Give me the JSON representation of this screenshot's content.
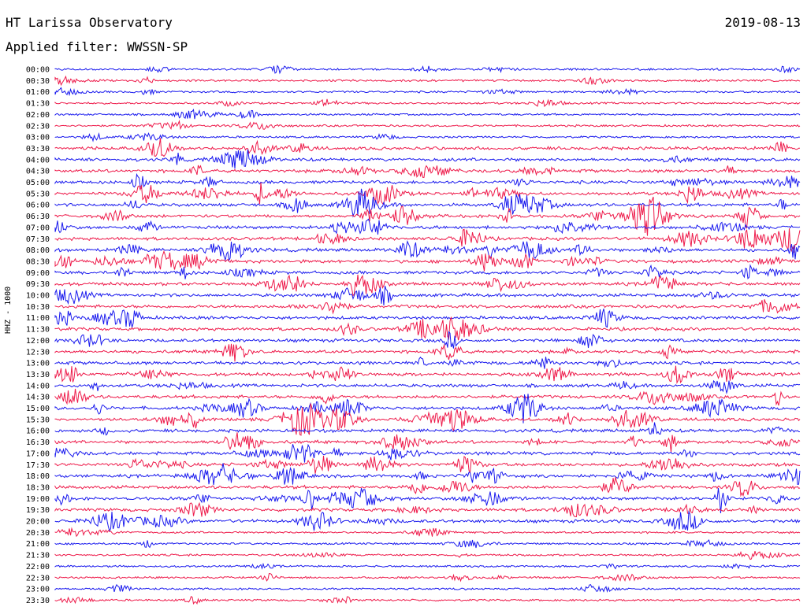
{
  "header": {
    "title": "HT Larissa Observatory",
    "date": "2019-08-13",
    "filter": "Applied filter: WWSSN-SP"
  },
  "chart_data": {
    "type": "line",
    "ylabel": "HHZ - 1000",
    "colors": {
      "even": "#1a1aee",
      "odd": "#ee1a4a"
    },
    "rows": [
      {
        "label": "00:00"
      },
      {
        "label": "00:30"
      },
      {
        "label": "01:00"
      },
      {
        "label": "01:30"
      },
      {
        "label": "02:00"
      },
      {
        "label": "02:30"
      },
      {
        "label": "03:00"
      },
      {
        "label": "03:30"
      },
      {
        "label": "04:00"
      },
      {
        "label": "04:30"
      },
      {
        "label": "05:00"
      },
      {
        "label": "05:30"
      },
      {
        "label": "06:00"
      },
      {
        "label": "06:30"
      },
      {
        "label": "07:00"
      },
      {
        "label": "07:30"
      },
      {
        "label": "08:00"
      },
      {
        "label": "08:30"
      },
      {
        "label": "09:00"
      },
      {
        "label": "09:30"
      },
      {
        "label": "10:00"
      },
      {
        "label": "10:30"
      },
      {
        "label": "11:00"
      },
      {
        "label": "11:30"
      },
      {
        "label": "12:00"
      },
      {
        "label": "12:30"
      },
      {
        "label": "13:00"
      },
      {
        "label": "13:30"
      },
      {
        "label": "14:00"
      },
      {
        "label": "14:30"
      },
      {
        "label": "15:00"
      },
      {
        "label": "15:30"
      },
      {
        "label": "16:00"
      },
      {
        "label": "16:30"
      },
      {
        "label": "17:00"
      },
      {
        "label": "17:30"
      },
      {
        "label": "18:00"
      },
      {
        "label": "18:30"
      },
      {
        "label": "19:00"
      },
      {
        "label": "19:30"
      },
      {
        "label": "20:00"
      },
      {
        "label": "20:30"
      },
      {
        "label": "21:00"
      },
      {
        "label": "21:30"
      },
      {
        "label": "22:00"
      },
      {
        "label": "22:30"
      },
      {
        "label": "23:00"
      },
      {
        "label": "23:30"
      }
    ]
  }
}
